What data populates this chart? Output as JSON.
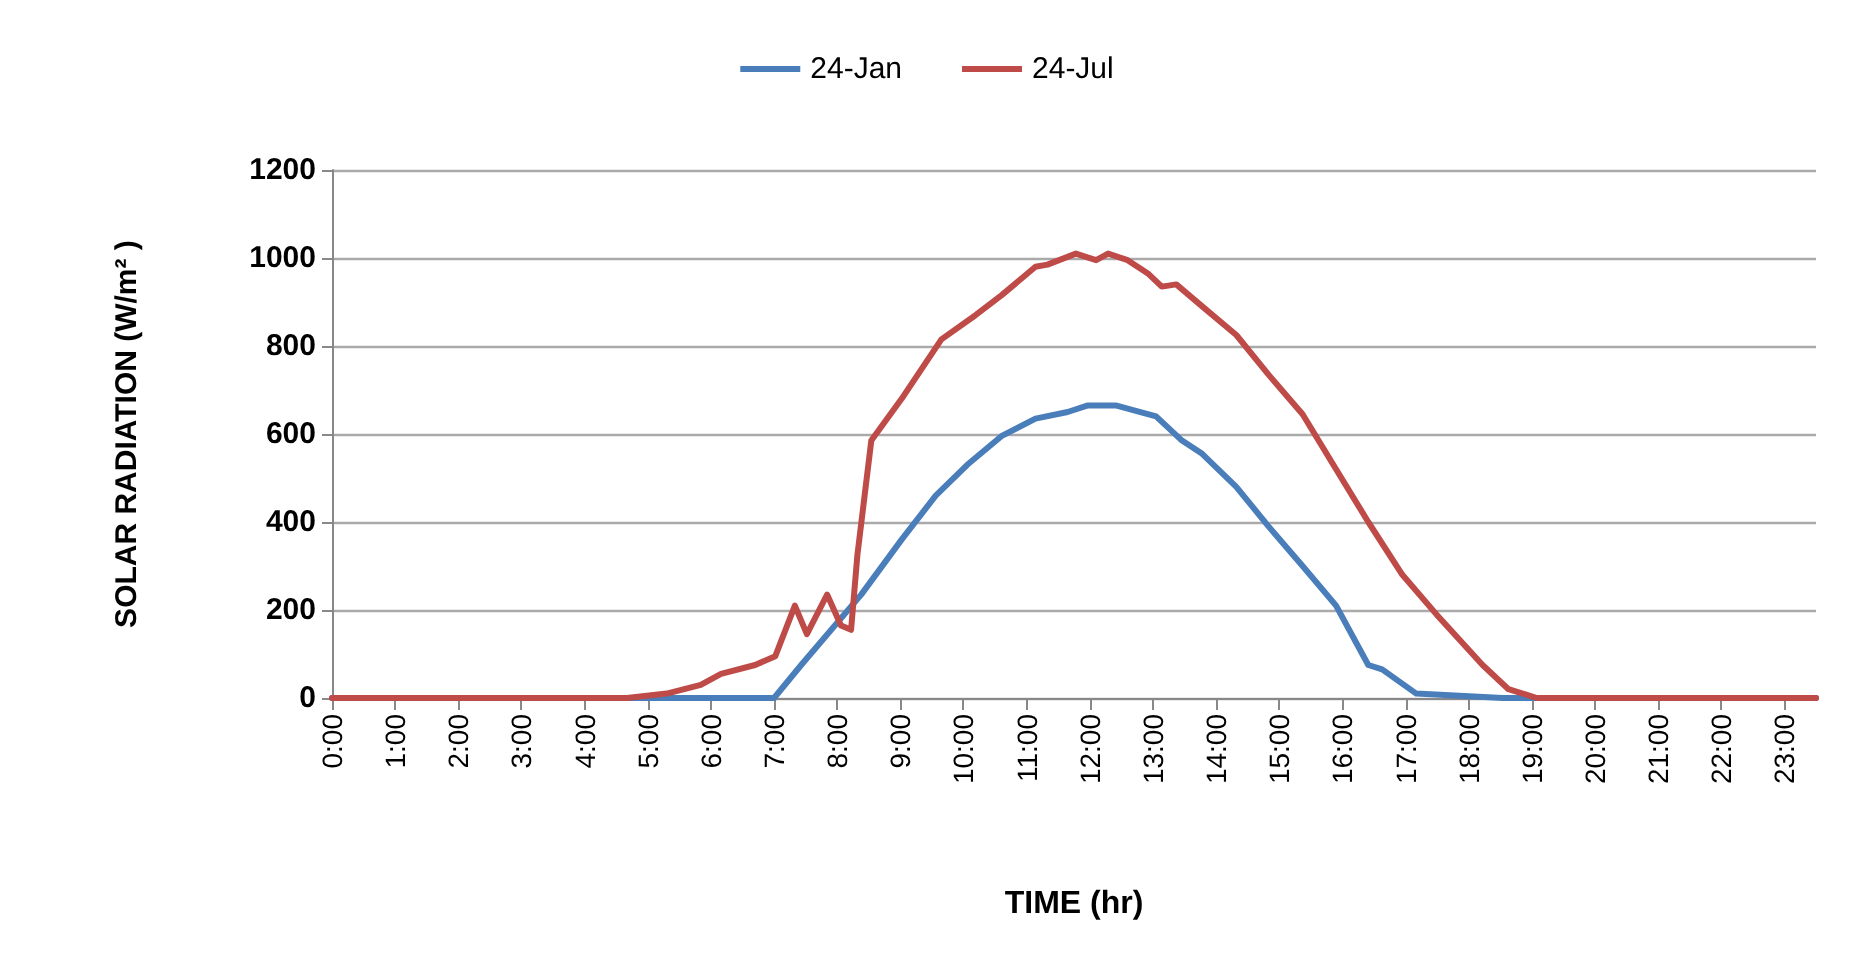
{
  "chart_data": {
    "type": "line",
    "xlabel": "TIME (hr)",
    "ylabel": "SOLAR RADIATION (W/m² )",
    "xlim": [
      0,
      23.5
    ],
    "xticks": [
      {
        "value": 0,
        "label": "0:00"
      },
      {
        "value": 1,
        "label": "1:00"
      },
      {
        "value": 2,
        "label": "2:00"
      },
      {
        "value": 3,
        "label": "3:00"
      },
      {
        "value": 4,
        "label": "4:00"
      },
      {
        "value": 5,
        "label": "5:00"
      },
      {
        "value": 6,
        "label": "6:00"
      },
      {
        "value": 7,
        "label": "7:00"
      },
      {
        "value": 8,
        "label": "8:00"
      },
      {
        "value": 9,
        "label": "9:00"
      },
      {
        "value": 10,
        "label": "10:00"
      },
      {
        "value": 11,
        "label": "11:00"
      },
      {
        "value": 12,
        "label": "12:00"
      },
      {
        "value": 13,
        "label": "13:00"
      },
      {
        "value": 14,
        "label": "14:00"
      },
      {
        "value": 15,
        "label": "15:00"
      },
      {
        "value": 16,
        "label": "16:00"
      },
      {
        "value": 17,
        "label": "17:00"
      },
      {
        "value": 18,
        "label": "18:00"
      },
      {
        "value": 19,
        "label": "19:00"
      },
      {
        "value": 20,
        "label": "20:00"
      },
      {
        "value": 21,
        "label": "21:00"
      },
      {
        "value": 22,
        "label": "22:00"
      },
      {
        "value": 23,
        "label": "23:00"
      }
    ],
    "ylim": [
      0,
      1200
    ],
    "yticks": [
      0,
      200,
      400,
      600,
      800,
      1000,
      1200
    ],
    "grid": "y",
    "legend": "top",
    "marker": "none",
    "line_style": "solid",
    "series": [
      {
        "name": "24-Jan",
        "color": "#4a7ebb",
        "x": [
          0,
          7.0,
          7.43,
          8.38,
          9.02,
          9.56,
          10.06,
          10.6,
          11.14,
          11.65,
          11.97,
          12.41,
          13.05,
          13.46,
          13.78,
          14.32,
          14.83,
          15.37,
          15.9,
          16.41,
          16.63,
          17.17,
          18.54,
          23.5
        ],
        "values": [
          0,
          0,
          75,
          235,
          360,
          460,
          530,
          595,
          635,
          650,
          665,
          665,
          640,
          585,
          555,
          480,
          390,
          300,
          210,
          75,
          65,
          10,
          0,
          0
        ]
      },
      {
        "name": "24-Jul",
        "color": "#be4b48",
        "x": [
          0,
          4.67,
          5.3,
          5.84,
          6.16,
          6.7,
          7.02,
          7.33,
          7.52,
          7.84,
          8.06,
          8.22,
          8.32,
          8.54,
          9.02,
          9.65,
          10.19,
          10.6,
          11.14,
          11.33,
          11.78,
          12.1,
          12.29,
          12.6,
          12.92,
          13.14,
          13.37,
          13.78,
          14.32,
          14.83,
          15.37,
          15.9,
          16.41,
          16.95,
          17.49,
          18.22,
          18.63,
          19.08,
          23.5
        ],
        "values": [
          0,
          0,
          10,
          30,
          55,
          75,
          95,
          210,
          145,
          235,
          165,
          155,
          325,
          585,
          680,
          815,
          870,
          915,
          980,
          985,
          1010,
          995,
          1010,
          995,
          965,
          935,
          940,
          890,
          825,
          735,
          645,
          520,
          400,
          280,
          190,
          75,
          20,
          0,
          0
        ]
      }
    ]
  }
}
